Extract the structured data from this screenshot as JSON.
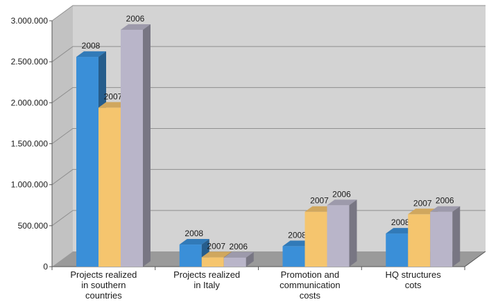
{
  "chart_data": {
    "type": "bar",
    "style": "3d-clustered-column",
    "categories": [
      [
        "Projects realized",
        "in southern",
        "countries"
      ],
      [
        "Projects realized",
        "in Italy"
      ],
      [
        "Promotion and",
        "communication",
        "costs"
      ],
      [
        "HQ structures",
        "cots"
      ]
    ],
    "series": [
      {
        "name": "2008",
        "color": "#3a8fd8",
        "values": [
          2560000,
          270000,
          250000,
          405000
        ]
      },
      {
        "name": "2007",
        "color": "#f5c56e",
        "values": [
          1940000,
          115000,
          670000,
          640000
        ]
      },
      {
        "name": "2006",
        "color": "#b9b5c9",
        "values": [
          2890000,
          110000,
          750000,
          670000
        ]
      }
    ],
    "y_ticks": [
      "0",
      "500.000",
      "1.000.000",
      "1.500.000",
      "2.000.000",
      "2.500.000",
      "3.000.000"
    ],
    "ylim": [
      0,
      3000000
    ],
    "legend": "none",
    "grid": true,
    "data_labels": "series name above each bar"
  }
}
